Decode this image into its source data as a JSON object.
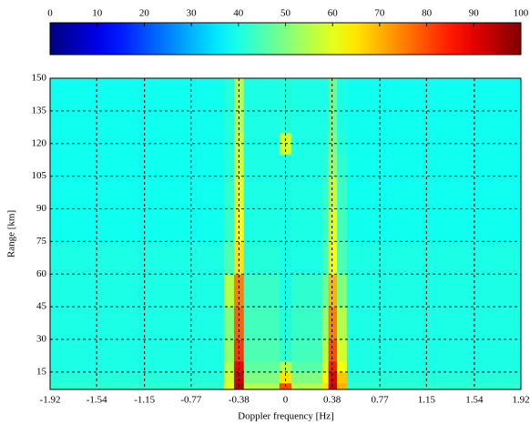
{
  "chart_data": {
    "type": "heatmap",
    "xlabel": "Doppler frequency [Hz]",
    "ylabel": "Range [km]",
    "xbins": [
      -1.92,
      -0.5,
      -0.42,
      -0.34,
      -0.05,
      0.05,
      0.3,
      0.35,
      0.42,
      0.5,
      1.92
    ],
    "ybins": [
      7,
      10,
      15,
      20,
      30,
      45,
      60,
      75,
      90,
      105,
      115,
      125,
      150
    ],
    "z": [
      [
        42,
        60,
        95,
        55,
        80,
        55,
        65,
        92,
        70,
        42
      ],
      [
        41,
        58,
        92,
        50,
        65,
        50,
        62,
        90,
        68,
        41
      ],
      [
        40,
        55,
        88,
        47,
        55,
        46,
        58,
        85,
        62,
        40
      ],
      [
        40,
        52,
        82,
        45,
        42,
        44,
        55,
        80,
        58,
        40
      ],
      [
        40,
        50,
        78,
        44,
        41,
        43,
        52,
        75,
        55,
        40
      ],
      [
        40,
        55,
        75,
        43,
        40,
        42,
        48,
        70,
        50,
        40
      ],
      [
        40,
        45,
        65,
        41,
        40,
        40,
        44,
        62,
        45,
        40
      ],
      [
        39,
        43,
        62,
        40,
        40,
        40,
        43,
        60,
        44,
        39
      ],
      [
        39,
        42,
        60,
        40,
        40,
        40,
        42,
        57,
        43,
        39
      ],
      [
        39,
        41,
        58,
        40,
        40,
        40,
        41,
        52,
        42,
        39
      ],
      [
        39,
        41,
        57,
        40,
        58,
        40,
        41,
        50,
        41,
        39
      ],
      [
        39,
        41,
        55,
        40,
        41,
        40,
        40,
        48,
        40,
        39
      ]
    ],
    "xlim": [
      -1.92,
      1.92
    ],
    "xticks": [
      -1.92,
      -1.54,
      -1.15,
      -0.77,
      -0.38,
      0,
      0.38,
      0.77,
      1.15,
      1.54,
      1.92
    ],
    "ylim": [
      7,
      150
    ],
    "yticks": [
      15,
      30,
      45,
      60,
      75,
      90,
      105,
      120,
      135,
      150
    ],
    "grid": true,
    "colormap": "jet",
    "clim": [
      0,
      100
    ],
    "cticks": [
      0,
      10,
      20,
      30,
      40,
      50,
      60,
      70,
      80,
      90,
      100
    ]
  }
}
